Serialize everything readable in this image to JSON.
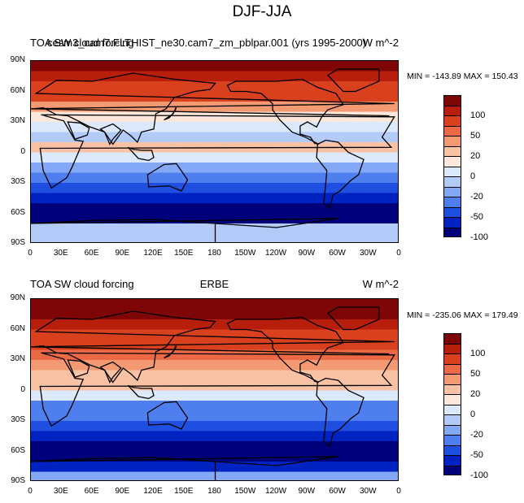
{
  "figure": {
    "title": "DJF-JJA"
  },
  "colors": {
    "levels": [
      -100,
      -50,
      -20,
      0,
      20,
      50,
      100
    ],
    "palette": [
      "#00007a",
      "#0022c0",
      "#1f4fe0",
      "#4f7fef",
      "#83a8f5",
      "#b3cbf9",
      "#dce8fc",
      "#fde6da",
      "#f9c2a5",
      "#f49a72",
      "#eb6a45",
      "#d9401e",
      "#b81e0c",
      "#7e0606"
    ],
    "colorbar_labels": [
      "100",
      "50",
      "20",
      "0",
      "-20",
      "-50",
      "-100"
    ]
  },
  "axes": {
    "x_ticks": [
      "0",
      "30E",
      "60E",
      "90E",
      "120E",
      "150E",
      "180",
      "150W",
      "120W",
      "90W",
      "60W",
      "30W",
      "0"
    ],
    "y_ticks": [
      "90N",
      "60N",
      "30N",
      "0",
      "30S",
      "60S",
      "90S"
    ]
  },
  "panels": [
    {
      "left_title": "TOA SW cloud forcing",
      "center_title": "cesm3_cam7.FLTHIST_ne30.cam7_zm_pblpar.001 (yrs 1995-2000)",
      "units": "W m^-2",
      "stats": "MIN = -143.89 MAX = 150.43"
    },
    {
      "left_title": "TOA SW cloud forcing",
      "center_title": "ERBE",
      "units": "W m^-2",
      "stats": "MIN = -235.06 MAX = 179.49"
    }
  ],
  "chart_data": [
    {
      "type": "heatmap",
      "title": "DJF-JJA",
      "subtitle": "cesm3_cam7.FLTHIST_ne30.cam7_zm_pblpar.001 (yrs 1995-2000)",
      "variable": "TOA SW cloud forcing",
      "units": "W m^-2",
      "x_ticks": [
        "0",
        "30E",
        "60E",
        "90E",
        "120E",
        "150E",
        "180",
        "150W",
        "120W",
        "90W",
        "60W",
        "30W",
        "0"
      ],
      "y_ticks": [
        "90N",
        "60N",
        "30N",
        "0",
        "30S",
        "60S",
        "90S"
      ],
      "xlim": [
        0,
        360
      ],
      "ylim": [
        -90,
        90
      ],
      "min": -143.89,
      "max": 150.43,
      "contour_levels": [
        -100,
        -50,
        -20,
        0,
        20,
        50,
        100
      ],
      "lat": [
        85,
        75,
        65,
        55,
        45,
        35,
        25,
        15,
        5,
        -5,
        -15,
        -25,
        -35,
        -45,
        -55,
        -65,
        -75,
        -85
      ],
      "zonal_mean": [
        110,
        80,
        65,
        50,
        30,
        5,
        -10,
        -15,
        15,
        -5,
        -35,
        -45,
        -55,
        -85,
        -110,
        -120,
        -20,
        -15
      ]
    },
    {
      "type": "heatmap",
      "title": "DJF-JJA",
      "subtitle": "ERBE",
      "variable": "TOA SW cloud forcing",
      "units": "W m^-2",
      "x_ticks": [
        "0",
        "30E",
        "60E",
        "90E",
        "120E",
        "150E",
        "180",
        "150W",
        "120W",
        "90W",
        "60W",
        "30W",
        "0"
      ],
      "y_ticks": [
        "90N",
        "60N",
        "30N",
        "0",
        "30S",
        "60S",
        "90S"
      ],
      "xlim": [
        0,
        360
      ],
      "ylim": [
        -90,
        90
      ],
      "min": -235.06,
      "max": 179.49,
      "contour_levels": [
        -100,
        -50,
        -20,
        0,
        20,
        50,
        100
      ],
      "lat": [
        85,
        75,
        65,
        55,
        45,
        35,
        25,
        15,
        5,
        -5,
        -15,
        -25,
        -35,
        -45,
        -55,
        -65,
        -75,
        -85
      ],
      "zonal_mean": [
        110,
        100,
        90,
        70,
        60,
        40,
        20,
        10,
        15,
        -10,
        -40,
        -45,
        -55,
        -90,
        -130,
        -150,
        -80,
        -30
      ]
    }
  ]
}
